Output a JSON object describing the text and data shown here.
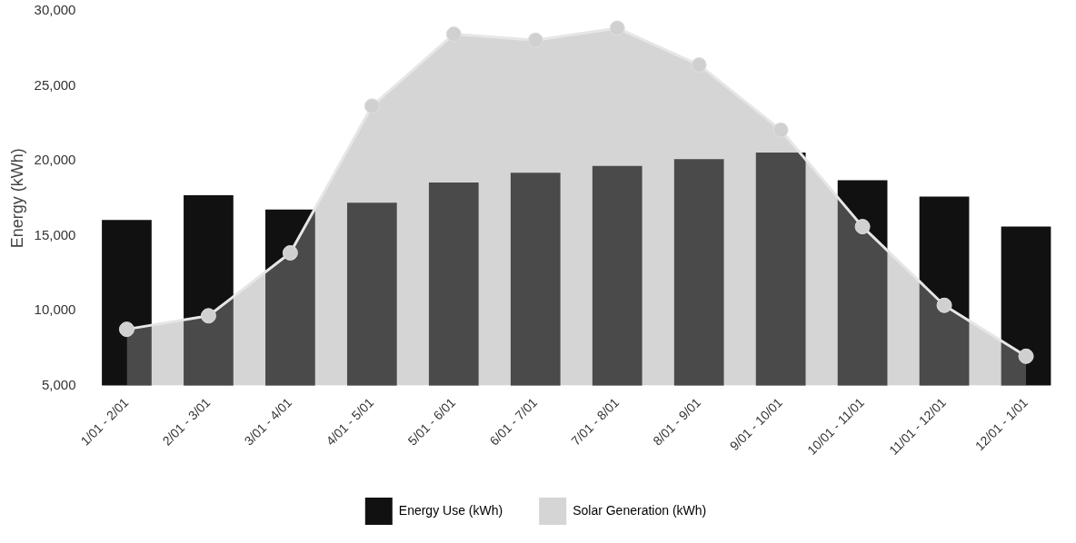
{
  "chart_data": {
    "type": "bar",
    "ylabel": "Energy (kWh)",
    "categories": [
      "1/01 - 2/01",
      "2/01 - 3/01",
      "3/01 - 4/01",
      "4/01 - 5/01",
      "5/01 - 6/01",
      "6/01 - 7/01",
      "7/01 - 8/01",
      "8/01 - 9/01",
      "9/01 - 10/01",
      "10/01 - 11/01",
      "11/01 - 12/01",
      "12/01 - 1/01"
    ],
    "series": [
      {
        "name": "Energy Use (kWh)",
        "color": "#111111",
        "values": [
          16050,
          17700,
          16750,
          17200,
          18550,
          19200,
          19650,
          20100,
          20550,
          18700,
          17600,
          15600
        ]
      },
      {
        "name": "Solar Generation (kWh)",
        "type": "area",
        "color": "#9a9a9a",
        "values": [
          8750,
          9650,
          13850,
          23650,
          28450,
          28050,
          28850,
          26400,
          22050,
          15600,
          10350,
          6950
        ]
      }
    ],
    "ylim": [
      5000,
      30000
    ],
    "yticks": [
      {
        "value": 5000,
        "label": "5,000"
      },
      {
        "value": 10000,
        "label": "10,000"
      },
      {
        "value": 15000,
        "label": "15,000"
      },
      {
        "value": 20000,
        "label": "20,000"
      },
      {
        "value": 25000,
        "label": "25,000"
      },
      {
        "value": 30000,
        "label": "30,000"
      }
    ],
    "legend": "bottom",
    "marker": "circle"
  }
}
